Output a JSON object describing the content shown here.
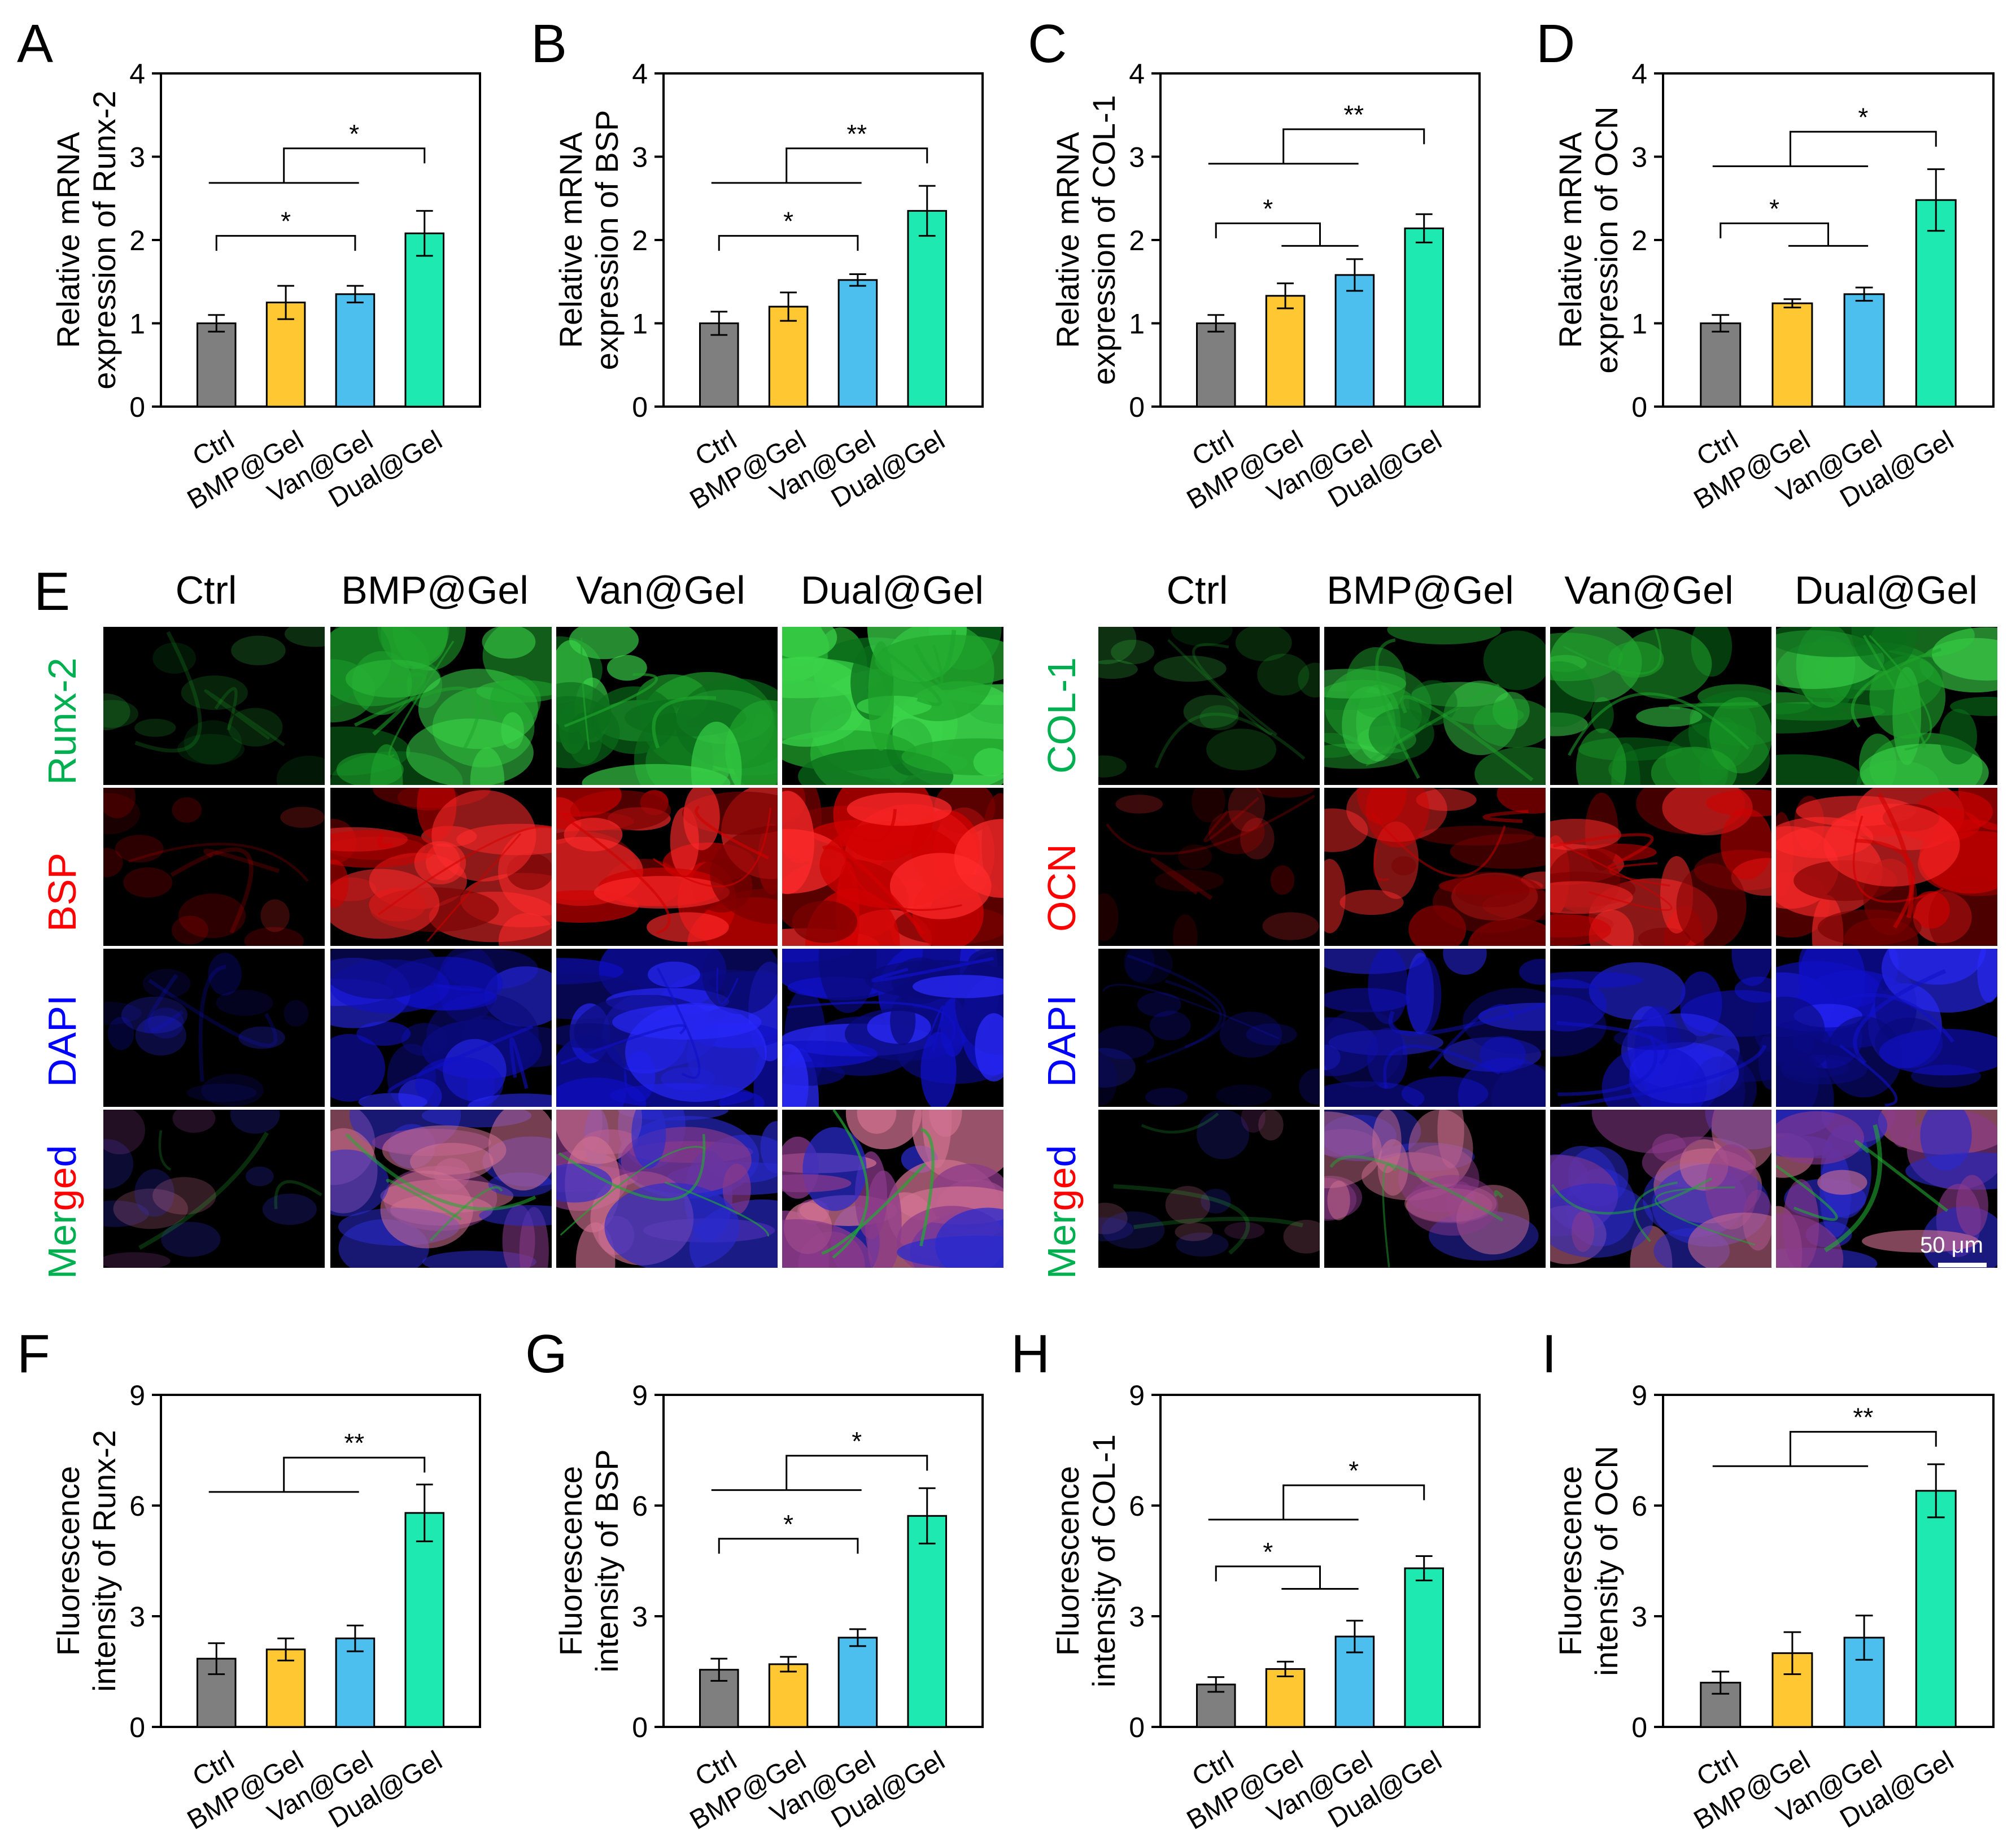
{
  "colors": {
    "Ctrl": "#7f7f7f",
    "BMP@Gel": "#ffc832",
    "Van@Gel": "#4dbfee",
    "Dual@Gel": "#1de9b0",
    "green_stain": "#00b050",
    "red_stain": "#ff0000",
    "blue_stain": "#0000ff"
  },
  "chart_data": [
    {
      "panel": "A",
      "type": "bar",
      "categories": [
        "Ctrl",
        "BMP@Gel",
        "Van@Gel",
        "Dual@Gel"
      ],
      "values": [
        1.0,
        1.25,
        1.35,
        2.08
      ],
      "errors": [
        0.1,
        0.2,
        0.1,
        0.27
      ],
      "ylabel_lines": [
        "Relative mRNA",
        "expression of Runx-2"
      ],
      "ylim": [
        0,
        4
      ],
      "yticks": [
        0,
        1,
        2,
        3,
        4
      ],
      "significance": [
        {
          "type": "simple",
          "from": 0,
          "to": 2,
          "y": 2.05,
          "label": "*"
        },
        {
          "type": "group",
          "group_from": 0,
          "group_to": 2,
          "target": 3,
          "y": 3.1,
          "label": "*"
        }
      ]
    },
    {
      "panel": "B",
      "type": "bar",
      "categories": [
        "Ctrl",
        "BMP@Gel",
        "Van@Gel",
        "Dual@Gel"
      ],
      "values": [
        1.0,
        1.2,
        1.52,
        2.35
      ],
      "errors": [
        0.14,
        0.17,
        0.07,
        0.3
      ],
      "ylabel_lines": [
        "Relative mRNA",
        "expression of BSP"
      ],
      "ylim": [
        0,
        4
      ],
      "yticks": [
        0,
        1,
        2,
        3,
        4
      ],
      "significance": [
        {
          "type": "simple",
          "from": 0,
          "to": 2,
          "y": 2.05,
          "label": "*"
        },
        {
          "type": "group",
          "group_from": 0,
          "group_to": 2,
          "target": 3,
          "y": 3.1,
          "label": "**"
        }
      ]
    },
    {
      "panel": "C",
      "type": "bar",
      "categories": [
        "Ctrl",
        "BMP@Gel",
        "Van@Gel",
        "Dual@Gel"
      ],
      "values": [
        1.0,
        1.33,
        1.58,
        2.14
      ],
      "errors": [
        0.1,
        0.15,
        0.19,
        0.17
      ],
      "ylabel_lines": [
        "Relative mRNA",
        "expression of COL-1"
      ],
      "ylim": [
        0,
        4
      ],
      "yticks": [
        0,
        1,
        2,
        3,
        4
      ],
      "significance": [
        {
          "type": "group_left",
          "from": 0,
          "group_from": 1,
          "group_to": 2,
          "y": 2.2,
          "label": "*"
        },
        {
          "type": "group",
          "group_from": 0,
          "group_to": 2,
          "target": 3,
          "y": 3.33,
          "label": "**"
        }
      ]
    },
    {
      "panel": "D",
      "type": "bar",
      "categories": [
        "Ctrl",
        "BMP@Gel",
        "Van@Gel",
        "Dual@Gel"
      ],
      "values": [
        1.0,
        1.24,
        1.35,
        2.48
      ],
      "errors": [
        0.1,
        0.05,
        0.08,
        0.37
      ],
      "ylabel_lines": [
        "Relative mRNA",
        "expression of OCN"
      ],
      "ylim": [
        0,
        4
      ],
      "yticks": [
        0,
        1,
        2,
        3,
        4
      ],
      "significance": [
        {
          "type": "group_left",
          "from": 0,
          "group_from": 1,
          "group_to": 2,
          "y": 2.2,
          "label": "*"
        },
        {
          "type": "group",
          "group_from": 0,
          "group_to": 2,
          "target": 3,
          "y": 3.3,
          "label": "*"
        }
      ]
    },
    {
      "panel": "F",
      "type": "bar",
      "categories": [
        "Ctrl",
        "BMP@Gel",
        "Van@Gel",
        "Dual@Gel"
      ],
      "values": [
        1.85,
        2.1,
        2.4,
        5.8
      ],
      "errors": [
        0.42,
        0.3,
        0.35,
        0.77
      ],
      "ylabel_lines": [
        "Fluorescence",
        "intensity of Runx-2"
      ],
      "ylim": [
        0,
        9
      ],
      "yticks": [
        0,
        3,
        6,
        9
      ],
      "significance": [
        {
          "type": "group",
          "group_from": 0,
          "group_to": 2,
          "target": 3,
          "y": 7.3,
          "label": "**"
        }
      ]
    },
    {
      "panel": "G",
      "type": "bar",
      "categories": [
        "Ctrl",
        "BMP@Gel",
        "Van@Gel",
        "Dual@Gel"
      ],
      "values": [
        1.55,
        1.7,
        2.42,
        5.72
      ],
      "errors": [
        0.3,
        0.2,
        0.23,
        0.75
      ],
      "ylabel_lines": [
        "Fluorescence",
        "intensity of BSP"
      ],
      "ylim": [
        0,
        9
      ],
      "yticks": [
        0,
        3,
        6,
        9
      ],
      "significance": [
        {
          "type": "simple",
          "from": 0,
          "to": 2,
          "y": 5.1,
          "label": "*"
        },
        {
          "type": "group",
          "group_from": 0,
          "group_to": 2,
          "target": 3,
          "y": 7.35,
          "label": "*"
        }
      ]
    },
    {
      "panel": "H",
      "type": "bar",
      "categories": [
        "Ctrl",
        "BMP@Gel",
        "Van@Gel",
        "Dual@Gel"
      ],
      "values": [
        1.15,
        1.57,
        2.45,
        4.3
      ],
      "errors": [
        0.2,
        0.2,
        0.43,
        0.33
      ],
      "ylabel_lines": [
        "Fluorescence",
        "intensity of COL-1"
      ],
      "ylim": [
        0,
        9
      ],
      "yticks": [
        0,
        3,
        6,
        9
      ],
      "significance": [
        {
          "type": "group_left",
          "from": 0,
          "group_from": 1,
          "group_to": 2,
          "y": 4.35,
          "label": "*"
        },
        {
          "type": "group",
          "group_from": 0,
          "group_to": 2,
          "target": 3,
          "y": 6.55,
          "label": "*"
        }
      ]
    },
    {
      "panel": "I",
      "type": "bar",
      "categories": [
        "Ctrl",
        "BMP@Gel",
        "Van@Gel",
        "Dual@Gel"
      ],
      "values": [
        1.2,
        2.0,
        2.42,
        6.4
      ],
      "errors": [
        0.3,
        0.57,
        0.6,
        0.72
      ],
      "ylabel_lines": [
        "Fluorescence",
        "intensity of OCN"
      ],
      "ylim": [
        0,
        9
      ],
      "yticks": [
        0,
        3,
        6,
        9
      ],
      "significance": [
        {
          "type": "group",
          "group_from": 0,
          "group_to": 2,
          "target": 3,
          "y": 8.0,
          "label": "**"
        }
      ]
    }
  ],
  "panel_e": {
    "letter": "E",
    "column_headers": [
      "Ctrl",
      "BMP@Gel",
      "Van@Gel",
      "Dual@Gel"
    ],
    "left": {
      "row_labels": [
        "Runx-2",
        "BSP",
        "DAPI"
      ],
      "merged_label": "Merged"
    },
    "right": {
      "row_labels": [
        "COL-1",
        "OCN",
        "DAPI"
      ],
      "merged_label": "Merged"
    },
    "scale_bar_label": "50 μm"
  }
}
